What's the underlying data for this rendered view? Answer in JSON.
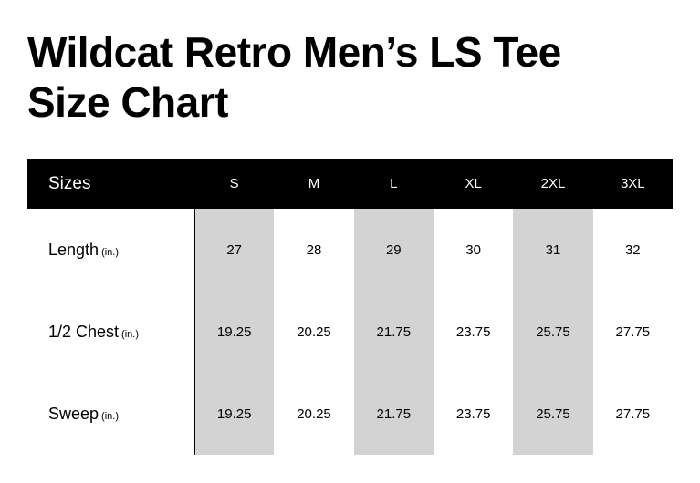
{
  "title_lines": [
    "Wildcat Retro Men’s LS Tee",
    "Size Chart"
  ],
  "table": {
    "header_label": "Sizes",
    "sizes": [
      "S",
      "M",
      "L",
      "XL",
      "2XL",
      "3XL"
    ],
    "shaded_columns": [
      "S",
      "L",
      "2XL"
    ],
    "shade_color": "#d3d3d3",
    "rows": [
      {
        "label": "Length",
        "unit": "(in.)",
        "values": [
          "27",
          "28",
          "29",
          "30",
          "31",
          "32"
        ]
      },
      {
        "label": "1/2 Chest",
        "unit": "(in.)",
        "values": [
          "19.25",
          "20.25",
          "21.75",
          "23.75",
          "25.75",
          "27.75"
        ]
      },
      {
        "label": "Sweep",
        "unit": "(in.)",
        "values": [
          "19.25",
          "20.25",
          "21.75",
          "23.75",
          "25.75",
          "27.75"
        ]
      }
    ]
  }
}
